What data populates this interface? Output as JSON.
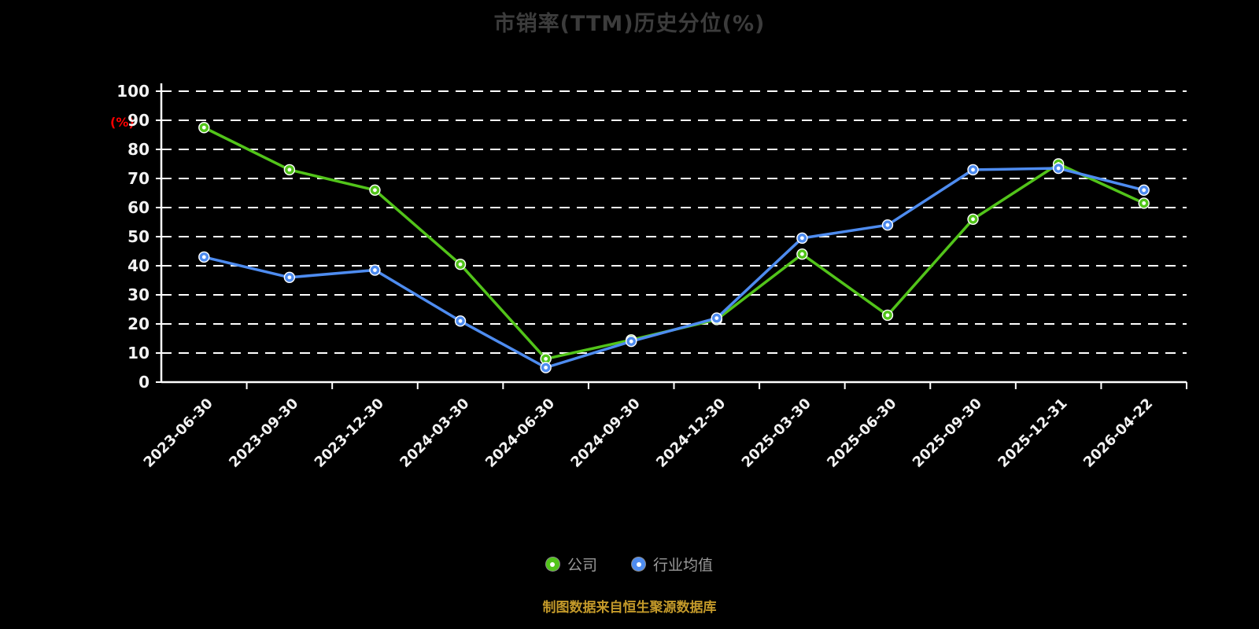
{
  "chart_data": {
    "type": "line",
    "title": "市销率(TTM)历史分位(%)",
    "ylabel": "(%)",
    "ylim": [
      0,
      100
    ],
    "ytick_step": 10,
    "grid": "horizontal dashed white lines",
    "legend_position": "bottom",
    "categories": [
      "2023-06-30",
      "2023-09-30",
      "2023-12-30",
      "2024-03-30",
      "2024-06-30",
      "2024-09-30",
      "2024-12-30",
      "2025-03-30",
      "2025-06-30",
      "2025-09-30",
      "2025-12-31",
      "2026-04-22"
    ],
    "series": [
      {
        "name": "公司",
        "color": "#52c41a",
        "values": [
          87.5,
          73,
          66,
          40.5,
          8,
          14.5,
          21.5,
          44,
          23,
          56,
          75,
          61.5
        ]
      },
      {
        "name": "行业均值",
        "color": "#4e8cf0",
        "values": [
          43,
          36,
          38.5,
          21,
          5,
          14,
          22,
          49.5,
          54,
          73,
          73.5,
          66
        ]
      }
    ]
  },
  "footer": {
    "note": "制图数据来自恒生聚源数据库"
  },
  "colors": {
    "background": "#000000",
    "title": "#3c3c3c",
    "axis": "#ffffff",
    "tick_label": "#f2f2f2",
    "ylabel": "#ff0000",
    "footer_note": "#c49a2a",
    "legend_text": "#9a9a9a"
  }
}
